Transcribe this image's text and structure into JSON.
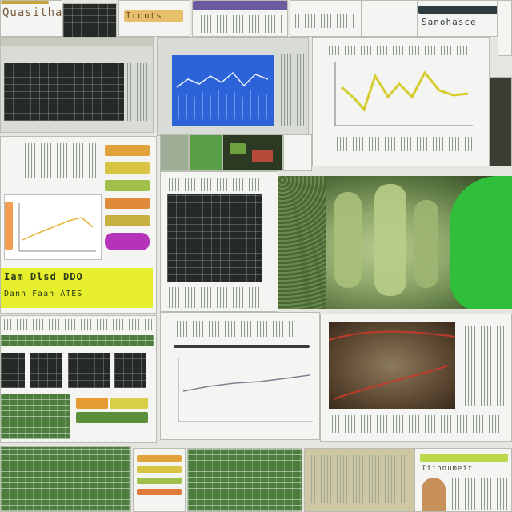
{
  "collage": {
    "tiles": [
      {
        "name": "top-left-headline-tile",
        "label": "Quasithatic"
      },
      {
        "name": "top-strip-tile",
        "label": "Irouts"
      },
      {
        "name": "top-right-strip-tile",
        "label": "Sanohasce"
      },
      {
        "name": "bottom-right-banner-tile",
        "label": "Tiinnumeit"
      }
    ],
    "yellow_banner_text": "Iam Dlsd DDO",
    "yellow_banner_subtext": "Danh Faan ATES"
  },
  "colors": {
    "accent_green": "#2fbf3a",
    "chart_blue": "#2c63d9",
    "chart_yellow": "#d4cc2c",
    "banner_yellow": "#e7ef2c"
  }
}
